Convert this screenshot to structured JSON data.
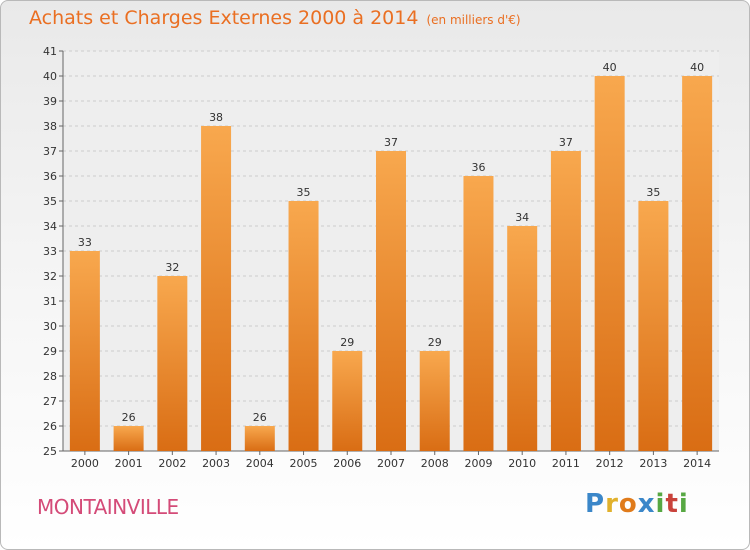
{
  "title": "Achats et Charges Externes 2000 à 2014",
  "unit": "(en milliers d'€)",
  "place": "MONTAINVILLE",
  "logo": {
    "letters": [
      "P",
      "r",
      "o",
      "x",
      "i",
      "t",
      "i"
    ],
    "colors": [
      "#3b87c9",
      "#e1b12c",
      "#e07b1b",
      "#3b87c9",
      "#57a843",
      "#c9423b",
      "#57a843"
    ]
  },
  "colors": {
    "bar_top": "#f8a84e",
    "bar_bottom": "#d96d14",
    "title": "#ea6f22",
    "place": "#d44b78"
  },
  "chart_data": {
    "type": "bar",
    "categories": [
      "2000",
      "2001",
      "2002",
      "2003",
      "2004",
      "2005",
      "2006",
      "2007",
      "2008",
      "2009",
      "2010",
      "2011",
      "2012",
      "2013",
      "2014"
    ],
    "values": [
      33,
      26,
      32,
      38,
      26,
      35,
      29,
      37,
      29,
      36,
      34,
      37,
      40,
      35,
      40
    ],
    "ylim": [
      25,
      41
    ],
    "yticks": [
      25,
      26,
      27,
      28,
      29,
      30,
      31,
      32,
      33,
      34,
      35,
      36,
      37,
      38,
      39,
      40,
      41
    ],
    "grid": true,
    "legend": "none"
  }
}
